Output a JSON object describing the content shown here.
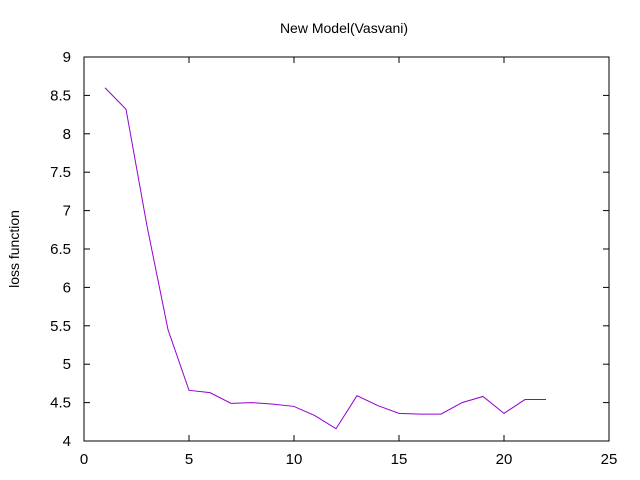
{
  "chart_data": {
    "type": "line",
    "title": "New Model(Vasvani)",
    "xlabel": "",
    "ylabel": "loss function",
    "xlim": [
      0,
      25
    ],
    "ylim": [
      4,
      9
    ],
    "xticks": [
      0,
      5,
      10,
      15,
      20,
      25
    ],
    "yticks": [
      4,
      4.5,
      5,
      5.5,
      6,
      6.5,
      7,
      7.5,
      8,
      8.5,
      9
    ],
    "ytick_labels": [
      "4",
      "4.5",
      "5",
      "5.5",
      "6",
      "6.5",
      "7",
      "7.5",
      "8",
      "8.5",
      "9"
    ],
    "grid": false,
    "series": [
      {
        "color": "#9400d3",
        "x": [
          1,
          2,
          3,
          4,
          5,
          6,
          7,
          8,
          9,
          10,
          11,
          12,
          13,
          14,
          15,
          16,
          17,
          18,
          19,
          20,
          21,
          22
        ],
        "y": [
          8.6,
          8.32,
          6.8,
          5.45,
          4.66,
          4.63,
          4.49,
          4.5,
          4.48,
          4.45,
          4.33,
          4.16,
          4.59,
          4.46,
          4.36,
          4.35,
          4.35,
          4.5,
          4.58,
          4.36,
          4.54,
          4.54
        ]
      }
    ]
  }
}
